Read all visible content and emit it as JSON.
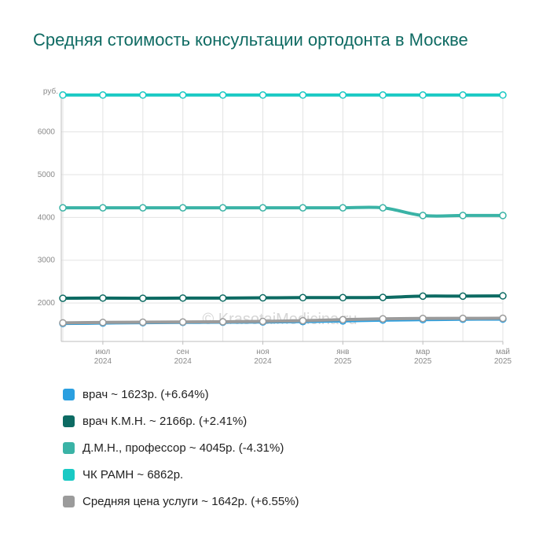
{
  "title": "Средняя стоимость консультации ортодонта в Москве",
  "watermark": "© KrasotaiMedicina.ru",
  "chart_data": {
    "type": "line",
    "title": "Средняя стоимость консультации ортодонта в Москве",
    "y_unit_label": "руб.",
    "ylim": [
      1100,
      6950
    ],
    "y_ticks": [
      2000,
      3000,
      4000,
      5000,
      6000
    ],
    "grid": true,
    "x_tick_labels": [
      {
        "month": "июл",
        "year": "2024",
        "index": 1
      },
      {
        "month": "сен",
        "year": "2024",
        "index": 3
      },
      {
        "month": "ноя",
        "year": "2024",
        "index": 5
      },
      {
        "month": "янв",
        "year": "2025",
        "index": 7
      },
      {
        "month": "мар",
        "year": "2025",
        "index": 9
      },
      {
        "month": "май",
        "year": "2025",
        "index": 11
      }
    ],
    "x": [
      "июн 2024",
      "июл 2024",
      "авг 2024",
      "сен 2024",
      "окт 2024",
      "ноя 2024",
      "дек 2024",
      "янв 2025",
      "фев 2025",
      "мар 2025",
      "апр 2025",
      "май 2025"
    ],
    "series": [
      {
        "name": "врач",
        "color": "#2a9fe0",
        "values": [
          1520,
          1530,
          1540,
          1545,
          1550,
          1555,
          1565,
          1580,
          1600,
          1610,
          1620,
          1623
        ]
      },
      {
        "name": "врач К.М.Н.",
        "color": "#0d6b63",
        "values": [
          2110,
          2115,
          2110,
          2115,
          2115,
          2120,
          2125,
          2125,
          2130,
          2160,
          2160,
          2166
        ]
      },
      {
        "name": "Д.М.Н., профессор",
        "color": "#3ab3a6",
        "values": [
          4225,
          4225,
          4225,
          4225,
          4225,
          4225,
          4225,
          4225,
          4225,
          4045,
          4045,
          4045
        ]
      },
      {
        "name": "ЧК РАМН",
        "color": "#19c9c4",
        "values": [
          6862,
          6862,
          6862,
          6862,
          6862,
          6862,
          6862,
          6862,
          6862,
          6862,
          6862,
          6862
        ]
      },
      {
        "name": "Средняя цена услуги",
        "color": "#9b9b9b",
        "values": [
          1535,
          1545,
          1550,
          1555,
          1560,
          1570,
          1585,
          1610,
          1630,
          1638,
          1640,
          1642
        ]
      }
    ]
  },
  "legend": [
    {
      "label": "врач ~ 1623р. (+6.64%)",
      "color": "#2a9fe0"
    },
    {
      "label": "врач К.М.Н. ~ 2166р. (+2.41%)",
      "color": "#0d6b63"
    },
    {
      "label": "Д.М.Н., профессор ~ 4045р. (-4.31%)",
      "color": "#3ab3a6"
    },
    {
      "label": "ЧК РАМН ~ 6862р.",
      "color": "#19c9c4"
    },
    {
      "label": "Средняя цена услуги ~ 1642р. (+6.55%)",
      "color": "#9b9b9b"
    }
  ]
}
